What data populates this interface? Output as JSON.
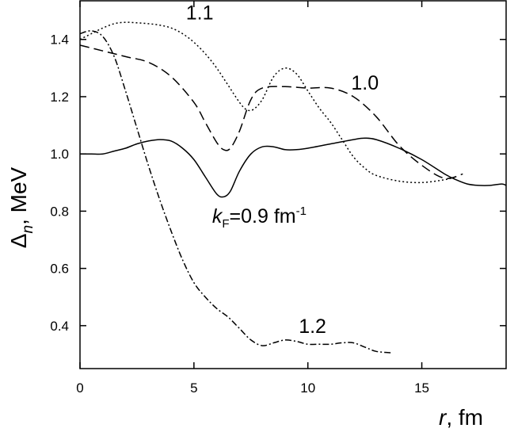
{
  "chart_data": {
    "type": "line",
    "title": "",
    "xlabel": {
      "var": "r",
      "unit": ", fm"
    },
    "ylabel": {
      "var": "Δ",
      "sub": "n",
      "unit": ", MeV"
    },
    "xlim": [
      0,
      18.7
    ],
    "ylim": [
      0.25,
      1.535
    ],
    "x_ticks": [
      0,
      5,
      10,
      15
    ],
    "x_tick_labels": [
      "0",
      "5",
      "10",
      "15"
    ],
    "y_ticks": [
      0.4,
      0.6,
      0.8,
      1.0,
      1.2,
      1.4
    ],
    "y_tick_labels": [
      "0.4",
      "0.6",
      "0.8",
      "1.0",
      "1.2",
      "1.4"
    ],
    "grid": false,
    "legend": "none",
    "series": [
      {
        "name": "0.9",
        "dash": "",
        "x": [
          0,
          0.5,
          1,
          1.5,
          2,
          2.5,
          3,
          3.5,
          4,
          4.5,
          5,
          5.5,
          6,
          6.3,
          6.6,
          7,
          7.5,
          8,
          8.5,
          9,
          9.5,
          10,
          11,
          12,
          12.5,
          13,
          14,
          15,
          16,
          16.5,
          17,
          17.5,
          18,
          18.5,
          18.7
        ],
        "y": [
          1.0,
          1.0,
          1.0,
          1.01,
          1.02,
          1.035,
          1.045,
          1.05,
          1.045,
          1.02,
          0.98,
          0.92,
          0.86,
          0.85,
          0.87,
          0.94,
          1.0,
          1.025,
          1.025,
          1.015,
          1.015,
          1.02,
          1.035,
          1.05,
          1.055,
          1.05,
          1.02,
          0.98,
          0.93,
          0.91,
          0.895,
          0.89,
          0.89,
          0.895,
          0.89
        ]
      },
      {
        "name": "1.0",
        "dash": "12,6",
        "x": [
          0,
          1,
          2,
          3,
          4,
          5,
          5.5,
          6,
          6.3,
          6.6,
          7,
          7.5,
          8,
          9,
          10,
          11,
          12,
          13,
          14,
          15,
          16,
          16.8
        ],
        "y": [
          1.38,
          1.36,
          1.34,
          1.32,
          1.27,
          1.18,
          1.11,
          1.04,
          1.015,
          1.02,
          1.08,
          1.19,
          1.23,
          1.235,
          1.23,
          1.23,
          1.2,
          1.13,
          1.03,
          0.96,
          0.915,
          0.93
        ]
      },
      {
        "name": "1.1",
        "dash": "2,3",
        "x": [
          0,
          0.5,
          1,
          1.5,
          2,
          2.5,
          3,
          3.5,
          4,
          4.5,
          5,
          5.5,
          6,
          6.5,
          7,
          7.3,
          7.6,
          8,
          8.5,
          9,
          9.5,
          10,
          10.5,
          11,
          11.5,
          12,
          12.5,
          13,
          14,
          15,
          16,
          16.5
        ],
        "y": [
          1.4,
          1.42,
          1.44,
          1.455,
          1.46,
          1.458,
          1.455,
          1.45,
          1.44,
          1.42,
          1.39,
          1.35,
          1.3,
          1.24,
          1.18,
          1.155,
          1.155,
          1.19,
          1.27,
          1.3,
          1.28,
          1.22,
          1.16,
          1.11,
          1.05,
          0.99,
          0.95,
          0.925,
          0.905,
          0.9,
          0.91,
          0.92
        ]
      },
      {
        "name": "1.2",
        "dash": "8,3,2,3",
        "x": [
          0,
          0.5,
          1,
          1.5,
          2,
          2.5,
          3,
          3.5,
          4,
          4.5,
          5,
          5.5,
          6,
          6.5,
          7,
          7.5,
          8,
          8.5,
          9,
          9.5,
          10,
          10.5,
          11,
          11.5,
          12,
          12.5,
          13,
          13.7
        ],
        "y": [
          1.42,
          1.43,
          1.41,
          1.34,
          1.22,
          1.09,
          0.96,
          0.84,
          0.73,
          0.63,
          0.55,
          0.5,
          0.46,
          0.43,
          0.39,
          0.35,
          0.33,
          0.34,
          0.35,
          0.345,
          0.335,
          0.335,
          0.335,
          0.34,
          0.34,
          0.325,
          0.31,
          0.305
        ]
      }
    ],
    "annotations": [
      {
        "text": "1.1",
        "x": 4.65,
        "y": 1.47
      },
      {
        "text": "1.0",
        "x": 11.9,
        "y": 1.225
      },
      {
        "text": "1.2",
        "x": 9.6,
        "y": 0.375
      },
      {
        "text": "k",
        "sub": "F",
        "rest": "=0.9 fm",
        "sup": "-1",
        "x": 5.8,
        "y": 0.76
      }
    ]
  }
}
